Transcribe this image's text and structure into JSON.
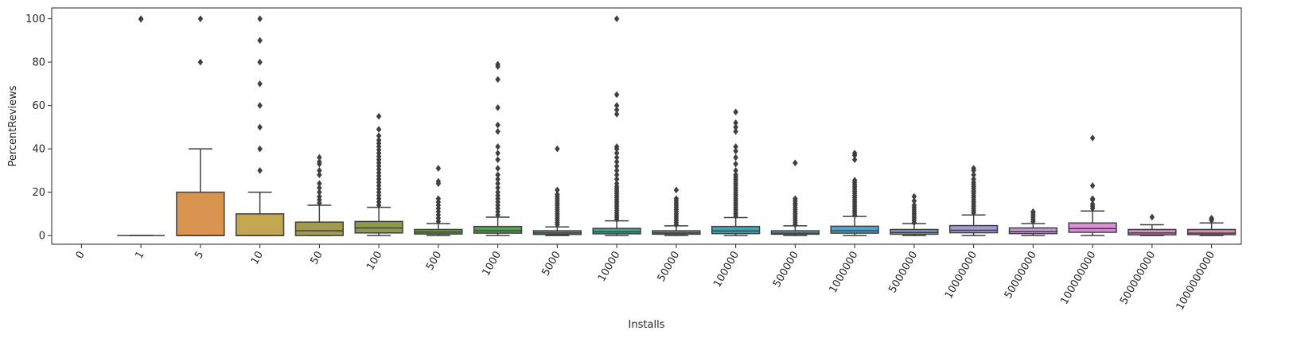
{
  "chart_data": {
    "type": "box",
    "xlabel": "Installs",
    "ylabel": "PercentReviews",
    "ylim": [
      -4,
      105
    ],
    "yticks": [
      0,
      20,
      40,
      60,
      80,
      100
    ],
    "grid": false,
    "categories": [
      "0",
      "1",
      "5",
      "10",
      "50",
      "100",
      "500",
      "1000",
      "5000",
      "10000",
      "50000",
      "100000",
      "500000",
      "1000000",
      "5000000",
      "10000000",
      "50000000",
      "100000000",
      "500000000",
      "1000000000"
    ],
    "colors": [
      "#3274a1",
      "#e1812c",
      "#d99550",
      "#c3a650",
      "#a39a51",
      "#8e9a47",
      "#6e9e47",
      "#4ea64a",
      "#4e9e6b",
      "#46a08c",
      "#45a0a1",
      "#44a4b7",
      "#47a4c9",
      "#4aa6d5",
      "#7f9bd3",
      "#a59ad4",
      "#c598d1",
      "#d98ed6",
      "#e385c6",
      "#e586b4"
    ],
    "boxes": [
      null,
      {
        "min": 0,
        "q1": 0,
        "median": 0,
        "q3": 0,
        "max": 0,
        "outliers": [
          100,
          99.8
        ]
      },
      {
        "min": 0,
        "q1": 0,
        "median": 0,
        "q3": 20,
        "max": 40,
        "outliers": [
          100,
          80
        ]
      },
      {
        "min": 0,
        "q1": 0,
        "median": 0,
        "q3": 10,
        "max": 20,
        "outliers": [
          100,
          90,
          80,
          70,
          60,
          50,
          40,
          30
        ]
      },
      {
        "min": 0,
        "q1": 0,
        "median": 2.2,
        "q3": 6.2,
        "max": 14,
        "outliers": [
          15,
          16.5,
          18,
          20,
          22,
          24,
          28,
          30,
          33,
          34,
          36
        ]
      },
      {
        "min": 0,
        "q1": 1.2,
        "median": 3.5,
        "q3": 6.5,
        "max": 13,
        "outliers": [
          14,
          15.5,
          17,
          18.5,
          20,
          21.5,
          23,
          24.5,
          26,
          27.5,
          29,
          30.5,
          32,
          33.5,
          35,
          36.5,
          38,
          39.5,
          41,
          42.5,
          44,
          46,
          49,
          55
        ]
      },
      {
        "min": 0,
        "q1": 0.7,
        "median": 1.6,
        "q3": 2.8,
        "max": 5.5,
        "outliers": [
          6.5,
          8,
          9.5,
          11,
          12.5,
          14,
          15.5,
          17,
          24,
          25,
          31
        ]
      },
      {
        "min": 0,
        "q1": 1.1,
        "median": 2.2,
        "q3": 4.2,
        "max": 8.5,
        "outliers": [
          9.5,
          11,
          12.5,
          14,
          15.5,
          17,
          18.5,
          20,
          22,
          24,
          26,
          28,
          31,
          35,
          38,
          41,
          48,
          51,
          59,
          72,
          78,
          79
        ]
      },
      {
        "min": 0,
        "q1": 0.5,
        "median": 1.2,
        "q3": 2.2,
        "max": 4,
        "outliers": [
          5,
          6,
          7,
          8,
          9,
          10,
          11,
          12,
          13,
          14,
          15,
          16,
          17,
          18,
          19,
          21,
          40
        ]
      },
      {
        "min": 0,
        "q1": 0.8,
        "median": 1.7,
        "q3": 3.3,
        "max": 6.8,
        "outliers": [
          7.5,
          8.5,
          9.5,
          10.5,
          11.5,
          12.5,
          13.5,
          14.5,
          15.5,
          16.5,
          17.5,
          18.5,
          19.5,
          20.5,
          21.5,
          22.5,
          24,
          26,
          28,
          30,
          32,
          34,
          36,
          38,
          40,
          41,
          56,
          58,
          60,
          65,
          100
        ]
      },
      {
        "min": 0,
        "q1": 0.6,
        "median": 1.2,
        "q3": 2.2,
        "max": 4.5,
        "outliers": [
          5,
          6,
          7,
          8,
          9,
          10,
          11,
          12,
          13,
          14,
          15,
          16,
          17,
          21
        ]
      },
      {
        "min": 0,
        "q1": 0.9,
        "median": 2.1,
        "q3": 4.2,
        "max": 8.3,
        "outliers": [
          9,
          10,
          11,
          12,
          13,
          14,
          15,
          16,
          17,
          18,
          19,
          20,
          21,
          22,
          23,
          24,
          25,
          26,
          27,
          28,
          30,
          33,
          36,
          39,
          41,
          48,
          50,
          52,
          57
        ]
      },
      {
        "min": 0,
        "q1": 0.6,
        "median": 1.1,
        "q3": 2.2,
        "max": 4.5,
        "outliers": [
          5,
          6,
          7,
          8,
          9,
          10,
          11,
          12,
          13,
          14,
          15,
          16,
          17,
          33.5
        ]
      },
      {
        "min": 0,
        "q1": 1.1,
        "median": 2.2,
        "q3": 4.3,
        "max": 8.8,
        "outliers": [
          9.5,
          10.5,
          11.5,
          12.5,
          13.5,
          14.5,
          15.5,
          16.5,
          17.5,
          18.5,
          19.5,
          20.5,
          21.5,
          22.5,
          23.5,
          24.5,
          25.5,
          35,
          37,
          38
        ]
      },
      {
        "min": 0,
        "q1": 0.6,
        "median": 1.4,
        "q3": 2.8,
        "max": 5.5,
        "outliers": [
          6,
          7,
          8,
          9,
          10,
          11,
          12,
          13,
          14,
          16,
          18
        ]
      },
      {
        "min": 0,
        "q1": 1.3,
        "median": 2.4,
        "q3": 4.6,
        "max": 9.5,
        "outliers": [
          10.5,
          11.5,
          12.5,
          13.5,
          14.5,
          15.5,
          16.5,
          17.5,
          18.5,
          19.5,
          20.5,
          21.5,
          22.5,
          23.5,
          24.5,
          26,
          28,
          30,
          31
        ]
      },
      {
        "min": 0,
        "q1": 0.9,
        "median": 1.8,
        "q3": 3.5,
        "max": 5.5,
        "outliers": [
          6.5,
          7.5,
          8.5,
          9.5,
          10.5,
          11
        ]
      },
      {
        "min": 0,
        "q1": 1.5,
        "median": 3.2,
        "q3": 5.8,
        "max": 11.3,
        "outliers": [
          12.5,
          13.5,
          14.5,
          16.5,
          17,
          23,
          45
        ]
      },
      {
        "min": 0,
        "q1": 0.3,
        "median": 1.2,
        "q3": 2.8,
        "max": 5,
        "outliers": [
          8.5
        ]
      },
      {
        "min": 0,
        "q1": 0.4,
        "median": 1.1,
        "q3": 2.8,
        "max": 5.8,
        "outliers": [
          7,
          7.5,
          8
        ]
      }
    ]
  }
}
